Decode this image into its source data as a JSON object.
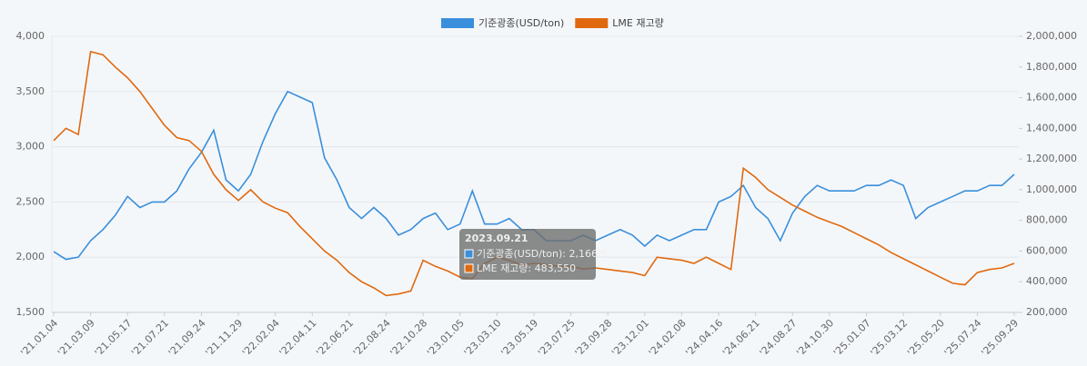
{
  "chart_data": {
    "type": "line",
    "categories": [
      "'21.01.04",
      null,
      null,
      "'21.03.09",
      null,
      null,
      "'21.05.17",
      null,
      null,
      "'21.07.21",
      null,
      null,
      "'21.09.24",
      null,
      null,
      "'21.11.29",
      null,
      null,
      "'22.02.04",
      null,
      null,
      "'22.04.11",
      null,
      null,
      "'22.06.21",
      null,
      null,
      "'22.08.24",
      null,
      null,
      "'22.10.28",
      null,
      null,
      "'23.01.05",
      null,
      null,
      "'23.03.10",
      null,
      null,
      "'23.05.19",
      null,
      null,
      "'23.07.25",
      null,
      null,
      "'23.09.28",
      null,
      null,
      "'23.12.01",
      null,
      null,
      "'24.02.08",
      null,
      null,
      "'24.04.16",
      null,
      null,
      "'24.06.21",
      null,
      null,
      "'24.08.27",
      null,
      null,
      "'24.10.30",
      null,
      null,
      "'25.01.07",
      null,
      null,
      "'25.03.12",
      null,
      null,
      "'25.05.20",
      null,
      null,
      "'25.07.24",
      null,
      null,
      "'25.09.29"
    ],
    "series": [
      {
        "name": "기준광종(USD/ton)",
        "color": "#3a8fdc",
        "axis": "y",
        "values": [
          2050,
          1980,
          2000,
          2150,
          2250,
          2380,
          2550,
          2450,
          2500,
          2500,
          2600,
          2800,
          2950,
          3150,
          2700,
          2600,
          2750,
          3050,
          3300,
          3500,
          3450,
          3400,
          2900,
          2700,
          2450,
          2350,
          2450,
          2350,
          2200,
          2250,
          2350,
          2400,
          2250,
          2300,
          2600,
          2300,
          2300,
          2350,
          2250,
          2250,
          2150,
          2150,
          2150,
          2200,
          2150,
          2200,
          2250,
          2200,
          2100,
          2200,
          2150,
          2200,
          2250,
          2250,
          2500,
          2550,
          2650,
          2450,
          2350,
          2150,
          2400,
          2550,
          2650,
          2600,
          2600,
          2600,
          2650,
          2650,
          2700,
          2650,
          2350,
          2450,
          2500,
          2550,
          2600,
          2600,
          2650,
          2650,
          2750
        ]
      },
      {
        "name": "LME 재고량",
        "color": "#e0690f",
        "axis": "y2",
        "values": [
          1320000,
          1400000,
          1360000,
          1900000,
          1880000,
          1800000,
          1730000,
          1640000,
          1530000,
          1420000,
          1340000,
          1320000,
          1250000,
          1100000,
          1000000,
          930000,
          1000000,
          920000,
          880000,
          850000,
          760000,
          680000,
          600000,
          540000,
          460000,
          400000,
          360000,
          310000,
          320000,
          340000,
          540000,
          500000,
          470000,
          430000,
          420000,
          520000,
          560000,
          540000,
          510000,
          520000,
          510000,
          500000,
          500000,
          483000,
          490000,
          480000,
          470000,
          460000,
          440000,
          560000,
          550000,
          540000,
          520000,
          560000,
          520000,
          480000,
          1140000,
          1080000,
          1000000,
          950000,
          900000,
          860000,
          820000,
          790000,
          760000,
          720000,
          680000,
          640000,
          590000,
          550000,
          510000,
          470000,
          430000,
          390000,
          380000,
          460000,
          480000,
          490000,
          520000
        ]
      }
    ],
    "ylim": [
      1500,
      4000
    ],
    "yticks": [
      {
        "value": 1500,
        "label": "1,500"
      },
      {
        "value": 2000,
        "label": "2,000"
      },
      {
        "value": 2500,
        "label": "2,500"
      },
      {
        "value": 3000,
        "label": "3,000"
      },
      {
        "value": 3500,
        "label": "3,500"
      },
      {
        "value": 4000,
        "label": "4,000"
      }
    ],
    "y2lim": [
      200000,
      2000000
    ],
    "y2ticks": [
      {
        "value": 200000,
        "label": "200,000"
      },
      {
        "value": 400000,
        "label": "400,000"
      },
      {
        "value": 600000,
        "label": "600,000"
      },
      {
        "value": 800000,
        "label": "800,000"
      },
      {
        "value": 1000000,
        "label": "1,000,000"
      },
      {
        "value": 1200000,
        "label": "1,200,000"
      },
      {
        "value": 1400000,
        "label": "1,400,000"
      },
      {
        "value": 1600000,
        "label": "1,600,000"
      },
      {
        "value": 1800000,
        "label": "1,800,000"
      },
      {
        "value": 2000000,
        "label": "2,000,000"
      }
    ],
    "grid": true,
    "legend": "top",
    "tooltip": {
      "title": "2023.09.21",
      "lines": [
        "기준광종(USD/ton): 2,166.5",
        "LME 재고량: 483,550"
      ]
    }
  }
}
